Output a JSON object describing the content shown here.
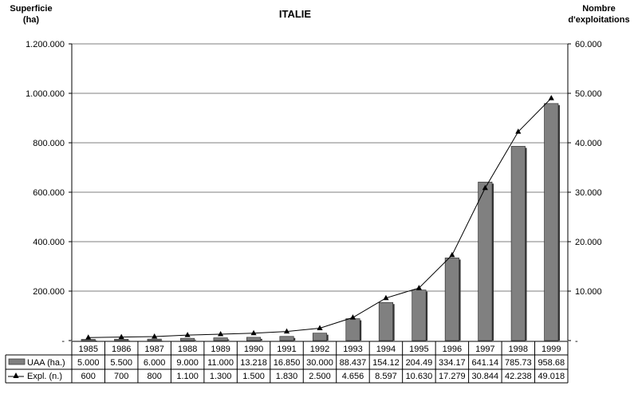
{
  "chart_data": {
    "type": "bar+line",
    "title": "ITALIE",
    "y_left_label": "Superficie\n(ha)",
    "y_right_label": "Nombre\nd'exploitations",
    "y_left_range": [
      0,
      1200000
    ],
    "y_right_range": [
      0,
      60000
    ],
    "y_left_ticks": [
      "-",
      "200.000",
      "400.000",
      "600.000",
      "800.000",
      "1.000.000",
      "1.200.000"
    ],
    "y_right_ticks": [
      "-",
      "10.000",
      "20.000",
      "30.000",
      "40.000",
      "50.000",
      "60.000"
    ],
    "categories": [
      "1985",
      "1986",
      "1987",
      "1988",
      "1989",
      "1990",
      "1991",
      "1992",
      "1993",
      "1994",
      "1995",
      "1996",
      "1997",
      "1998",
      "1999"
    ],
    "series": [
      {
        "name": "UAA (ha.)",
        "kind": "bar",
        "axis": "left",
        "color": "#808080",
        "values": [
          5000,
          5500,
          6000,
          9000,
          11000,
          13218,
          16850,
          30000,
          88437,
          154120,
          204490,
          334170,
          641140,
          785730,
          958680
        ],
        "labels": [
          "5.000",
          "5.500",
          "6.000",
          "9.000",
          "11.000",
          "13.218",
          "16.850",
          "30.000",
          "88.437",
          "154.12",
          "204.49",
          "334.17",
          "641.14",
          "785.73",
          "958.68"
        ]
      },
      {
        "name": "Expl. (n.)",
        "kind": "line",
        "axis": "right",
        "color": "#000000",
        "marker": "triangle",
        "values": [
          600,
          700,
          800,
          1100,
          1300,
          1500,
          1830,
          2500,
          4656,
          8597,
          10630,
          17279,
          30844,
          42238,
          49018
        ],
        "labels": [
          "600",
          "700",
          "800",
          "1.100",
          "1.300",
          "1.500",
          "1.830",
          "2.500",
          "4.656",
          "8.597",
          "10.630",
          "17.279",
          "30.844",
          "42.238",
          "49.018"
        ]
      }
    ],
    "grid": "horizontal",
    "legend": "data-table"
  }
}
